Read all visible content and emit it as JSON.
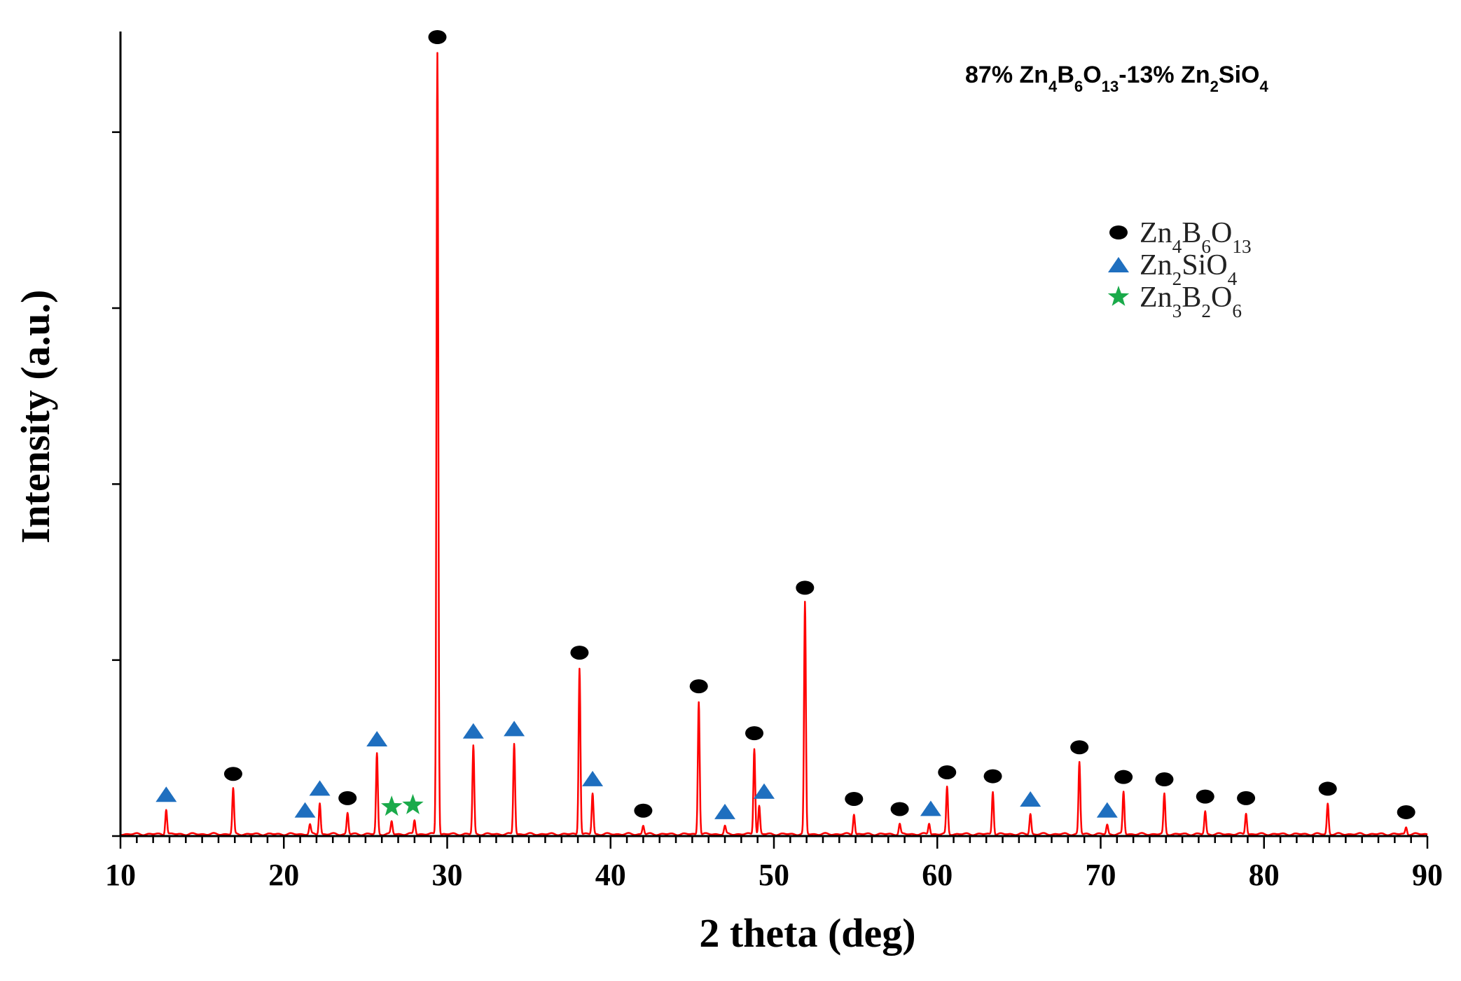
{
  "chart_data": {
    "type": "line",
    "title": "87% Zn4B6O13-13% Zn2SiO4",
    "title_parts": [
      {
        "t": "87% Zn"
      },
      {
        "t": "4",
        "sub": true
      },
      {
        "t": "B"
      },
      {
        "t": "6",
        "sub": true
      },
      {
        "t": "O"
      },
      {
        "t": "13",
        "sub": true
      },
      {
        "t": "-13% Zn"
      },
      {
        "t": "2",
        "sub": true
      },
      {
        "t": "SiO"
      },
      {
        "t": "4",
        "sub": true
      }
    ],
    "xlabel": "2 theta (deg)",
    "ylabel": "Intensity (a.u.)",
    "xlim": [
      10,
      90
    ],
    "ylim": [
      0,
      100
    ],
    "x_ticks": [
      10,
      20,
      30,
      40,
      50,
      60,
      70,
      80,
      90
    ],
    "y_ticks": [
      0,
      22.5,
      45,
      67.5,
      90
    ],
    "grid": false,
    "legend_position": "top-right",
    "series": [
      {
        "color": "#ff0000",
        "peaks": [
          {
            "x": 12.8,
            "y": 3.2
          },
          {
            "x": 16.9,
            "y": 5.8
          },
          {
            "x": 21.6,
            "y": 1.2
          },
          {
            "x": 22.2,
            "y": 4.0
          },
          {
            "x": 23.9,
            "y": 2.7
          },
          {
            "x": 25.7,
            "y": 10.3
          },
          {
            "x": 26.6,
            "y": 1.6
          },
          {
            "x": 28.0,
            "y": 1.8
          },
          {
            "x": 29.4,
            "y": 100
          },
          {
            "x": 31.6,
            "y": 11.3
          },
          {
            "x": 34.1,
            "y": 11.6
          },
          {
            "x": 38.1,
            "y": 21.3
          },
          {
            "x": 38.9,
            "y": 5.2
          },
          {
            "x": 42.0,
            "y": 1.1
          },
          {
            "x": 45.4,
            "y": 17.0
          },
          {
            "x": 47.0,
            "y": 1.0
          },
          {
            "x": 48.8,
            "y": 11.0
          },
          {
            "x": 49.1,
            "y": 3.6
          },
          {
            "x": 51.9,
            "y": 29.6
          },
          {
            "x": 54.9,
            "y": 2.6
          },
          {
            "x": 57.7,
            "y": 1.3
          },
          {
            "x": 59.5,
            "y": 1.4
          },
          {
            "x": 60.6,
            "y": 6.0
          },
          {
            "x": 63.4,
            "y": 5.5
          },
          {
            "x": 65.7,
            "y": 2.6
          },
          {
            "x": 68.7,
            "y": 9.2
          },
          {
            "x": 70.4,
            "y": 1.2
          },
          {
            "x": 71.4,
            "y": 5.4
          },
          {
            "x": 73.9,
            "y": 5.1
          },
          {
            "x": 76.4,
            "y": 2.9
          },
          {
            "x": 78.9,
            "y": 2.7
          },
          {
            "x": 83.9,
            "y": 3.9
          },
          {
            "x": 88.7,
            "y": 0.9
          }
        ]
      }
    ],
    "markers": {
      "Zn4B6O13": [
        16.9,
        23.9,
        29.4,
        38.1,
        42.0,
        45.4,
        48.8,
        51.9,
        54.9,
        57.7,
        60.6,
        63.4,
        68.7,
        71.4,
        73.9,
        76.4,
        78.9,
        83.9,
        88.7
      ],
      "Zn2SiO4": [
        12.8,
        21.3,
        22.2,
        25.7,
        31.6,
        34.1,
        38.9,
        47.0,
        49.4,
        59.6,
        65.7,
        70.4
      ],
      "Zn3B2O6": [
        26.6,
        27.9
      ]
    },
    "legend": [
      {
        "key": "Zn4B6O13",
        "marker": "circle",
        "color": "#000000",
        "parts": [
          {
            "t": "Zn"
          },
          {
            "t": "4",
            "sub": true
          },
          {
            "t": "B"
          },
          {
            "t": "6",
            "sub": true
          },
          {
            "t": "O"
          },
          {
            "t": "13",
            "sub": true
          }
        ]
      },
      {
        "key": "Zn2SiO4",
        "marker": "triangle",
        "color": "#1f6fbf",
        "parts": [
          {
            "t": "Zn"
          },
          {
            "t": "2",
            "sub": true
          },
          {
            "t": "SiO"
          },
          {
            "t": "4",
            "sub": true
          }
        ]
      },
      {
        "key": "Zn3B2O6",
        "marker": "star",
        "color": "#1aaa4a",
        "parts": [
          {
            "t": "Zn"
          },
          {
            "t": "3",
            "sub": true
          },
          {
            "t": "B"
          },
          {
            "t": "2",
            "sub": true
          },
          {
            "t": "O"
          },
          {
            "t": "6",
            "sub": true
          }
        ]
      }
    ]
  }
}
